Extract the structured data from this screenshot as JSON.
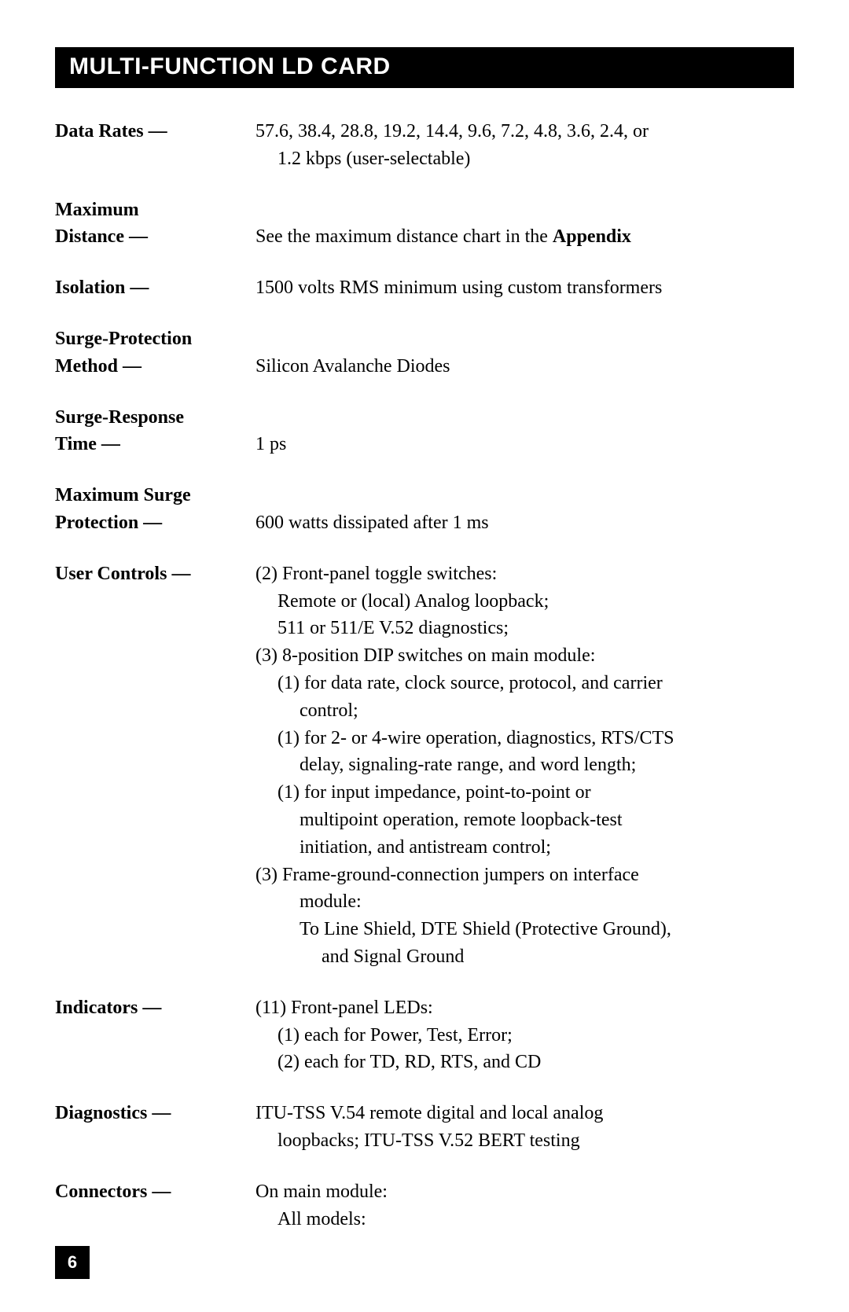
{
  "header": {
    "title": "MULTI-FUNCTION LD CARD"
  },
  "specs": {
    "data_rates": {
      "label": "Data Rates —",
      "l1": "57.6, 38.4, 28.8, 19.2, 14.4, 9.6, 7.2, 4.8, 3.6, 2.4, or",
      "l2": "1.2 kbps (user-selectable)"
    },
    "max_distance": {
      "label1": "Maximum",
      "label2": "Distance —",
      "v1": "See the maximum distance chart in the ",
      "v1b": "Appendix"
    },
    "isolation": {
      "label": "Isolation —",
      "v": "1500 volts RMS minimum using custom transformers"
    },
    "surge_method": {
      "label1": "Surge-Protection",
      "label2": "Method —",
      "v": "Silicon Avalanche Diodes"
    },
    "surge_time": {
      "label1": "Surge-Response",
      "label2": "Time —",
      "v": "1 ps"
    },
    "max_surge": {
      "label1": "Maximum Surge",
      "label2": "Protection —",
      "v": "600 watts dissipated after 1 ms"
    },
    "user_controls": {
      "label": "User Controls —",
      "l1": "(2) Front-panel toggle switches:",
      "l2": "Remote or (local) Analog loopback;",
      "l3": "511 or 511/E V.52 diagnostics;",
      "l4": "(3) 8-position DIP switches on main module:",
      "l5": "(1) for data rate, clock source, protocol, and carrier",
      "l5b": "control;",
      "l6": "(1) for 2- or 4-wire operation, diagnostics, RTS/CTS",
      "l6b": "delay, signaling-rate range, and word length;",
      "l7": "(1) for input impedance, point-to-point or",
      "l7b": "multipoint operation, remote loopback-test",
      "l7c": "initiation, and antistream control;",
      "l8": "(3) Frame-ground-connection jumpers on interface",
      "l8b": "module:",
      "l9": "To Line Shield, DTE Shield (Protective Ground),",
      "l9b": "and Signal Ground"
    },
    "indicators": {
      "label": "Indicators —",
      "l1": "(11) Front-panel LEDs:",
      "l2": "(1) each for Power, Test, Error;",
      "l3": "(2) each for TD, RD, RTS, and CD"
    },
    "diagnostics": {
      "label": "Diagnostics —",
      "l1": "ITU-TSS V.54 remote digital and local analog",
      "l2": "loopbacks; ITU-TSS V.52 BERT testing"
    },
    "connectors": {
      "label": "Connectors —",
      "l1": "On main module:",
      "l2": "All models:"
    }
  },
  "page_number": "6"
}
